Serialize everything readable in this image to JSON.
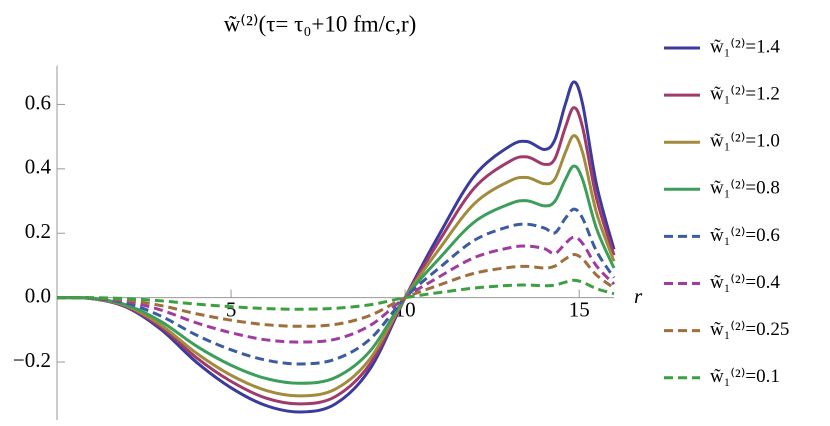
{
  "chart_data": {
    "type": "line",
    "title": "w̃⁽²⁾(τ= τ₀+10 fm/c,r)",
    "x_label": "r",
    "x": [
      0,
      1,
      2,
      3,
      4,
      5,
      6,
      7,
      8,
      9,
      10,
      11,
      12,
      13,
      13.5,
      14,
      14.3,
      14.6,
      14.85,
      15.1,
      15.5,
      16
    ],
    "xlim": [
      0,
      16
    ],
    "xticks": [
      5,
      10,
      15
    ],
    "ylim": [
      -0.38,
      0.72
    ],
    "yticks": [
      {
        "value": -0.2,
        "label": "−0.2"
      },
      {
        "value": 0,
        "label": "0.0"
      },
      0.2,
      0.4,
      0.6
    ],
    "series": [
      {
        "name": "w̃₁⁽²⁾=1.4",
        "color": "#3b3b9e",
        "dashed": false,
        "values": [
          0,
          -0.003,
          -0.03,
          -0.1,
          -0.2,
          -0.28,
          -0.335,
          -0.355,
          -0.33,
          -0.22,
          0,
          0.2,
          0.38,
          0.47,
          0.485,
          0.46,
          0.49,
          0.6,
          0.67,
          0.6,
          0.35,
          0.15
        ]
      },
      {
        "name": "w̃₁⁽²⁾=1.2",
        "color": "#a03a6b",
        "dashed": false,
        "values": [
          0,
          -0.003,
          -0.028,
          -0.093,
          -0.186,
          -0.26,
          -0.312,
          -0.33,
          -0.307,
          -0.205,
          0,
          0.18,
          0.342,
          0.423,
          0.437,
          0.414,
          0.431,
          0.528,
          0.59,
          0.528,
          0.308,
          0.132
        ]
      },
      {
        "name": "w̃₁⁽²⁾=1.0",
        "color": "#a08c3c",
        "dashed": false,
        "values": [
          0,
          -0.003,
          -0.026,
          -0.086,
          -0.172,
          -0.241,
          -0.288,
          -0.305,
          -0.284,
          -0.189,
          0,
          0.154,
          0.293,
          0.362,
          0.373,
          0.354,
          0.368,
          0.45,
          0.503,
          0.45,
          0.263,
          0.113
        ]
      },
      {
        "name": "w̃₁⁽²⁾=0.8",
        "color": "#3c9e5a",
        "dashed": false,
        "values": [
          0,
          -0.002,
          -0.023,
          -0.075,
          -0.15,
          -0.21,
          -0.251,
          -0.266,
          -0.248,
          -0.165,
          0,
          0.124,
          0.236,
          0.291,
          0.301,
          0.285,
          0.299,
          0.366,
          0.409,
          0.366,
          0.214,
          0.092
        ]
      },
      {
        "name": "w̃₁⁽²⁾=0.6",
        "color": "#3a5ca0",
        "dashed": true,
        "values": [
          0,
          -0.002,
          -0.017,
          -0.058,
          -0.116,
          -0.162,
          -0.194,
          -0.206,
          -0.191,
          -0.128,
          0,
          0.094,
          0.179,
          0.221,
          0.228,
          0.216,
          0.201,
          0.246,
          0.275,
          0.246,
          0.144,
          0.062
        ]
      },
      {
        "name": "w̃₁⁽²⁾=0.4",
        "color": "#a03ca0",
        "dashed": true,
        "values": [
          0,
          -0.001,
          -0.012,
          -0.039,
          -0.078,
          -0.109,
          -0.131,
          -0.138,
          -0.129,
          -0.086,
          0,
          0.066,
          0.125,
          0.155,
          0.16,
          0.152,
          0.137,
          0.168,
          0.188,
          0.168,
          0.098,
          0.042
        ]
      },
      {
        "name": "w̃₁⁽²⁾=0.25",
        "color": "#9e6e3c",
        "dashed": true,
        "values": [
          0,
          -0.001,
          -0.008,
          -0.025,
          -0.05,
          -0.07,
          -0.084,
          -0.089,
          -0.083,
          -0.055,
          0,
          0.04,
          0.076,
          0.094,
          0.097,
          0.092,
          0.098,
          0.12,
          0.134,
          0.12,
          0.07,
          0.03
        ]
      },
      {
        "name": "w̃₁⁽²⁾=0.1",
        "color": "#3ca040",
        "dashed": true,
        "values": [
          0,
          0,
          -0.003,
          -0.01,
          -0.02,
          -0.028,
          -0.034,
          -0.036,
          -0.033,
          -0.022,
          0,
          0.016,
          0.03,
          0.038,
          0.039,
          0.037,
          0.039,
          0.048,
          0.054,
          0.048,
          0.028,
          0.012
        ]
      }
    ]
  }
}
